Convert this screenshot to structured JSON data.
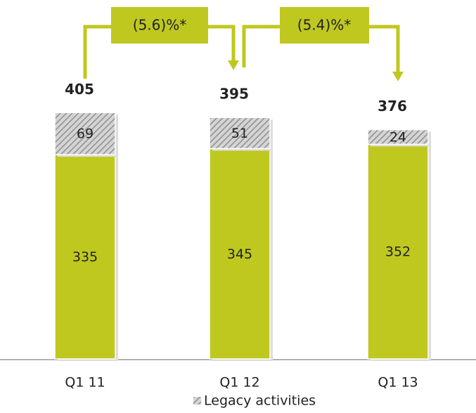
{
  "chart_data": {
    "type": "stacked-bar",
    "categories": [
      "Q1 11",
      "Q1 12",
      "Q1 13"
    ],
    "series": [
      {
        "color": "#bfc81f",
        "values": [
          335,
          345,
          352
        ]
      },
      {
        "name": "Legacy activities",
        "color": "#b5b5b5",
        "hatch": true,
        "values": [
          69,
          51,
          24
        ]
      }
    ],
    "totals": [
      405,
      395,
      376
    ],
    "annotations": [
      {
        "text": "(5.6)%*"
      },
      {
        "text": "(5.4)%*"
      }
    ],
    "ylim": [
      0,
      470
    ]
  }
}
